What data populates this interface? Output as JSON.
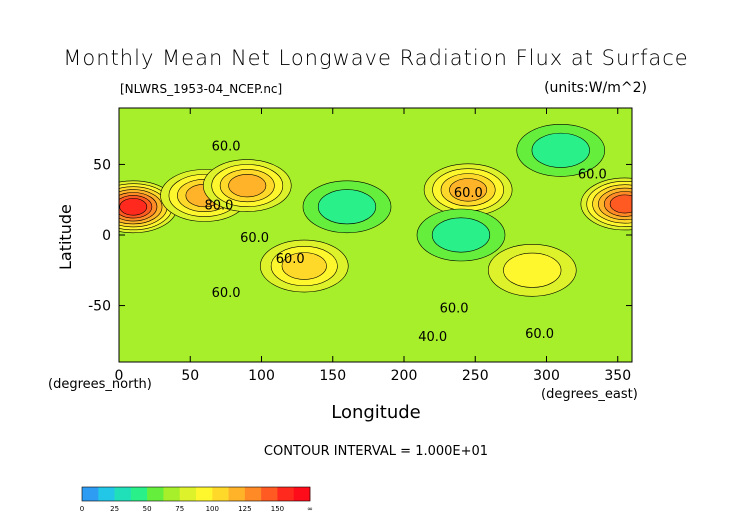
{
  "chart_data": {
    "type": "heatmap",
    "title": "Monthly Mean Net Longwave Radiation Flux at Surface",
    "source": "[NLWRS_1953-04_NCEP.nc]",
    "units": "(units:W/m^2)",
    "xlabel": "Longitude",
    "ylabel": "Latitude",
    "x_units_label": "(degrees_east)",
    "y_units_label": "(degrees_north)",
    "xlim": [
      0,
      360
    ],
    "ylim": [
      -90,
      90
    ],
    "x_ticks": [
      0,
      50,
      100,
      150,
      200,
      250,
      300,
      350
    ],
    "y_ticks": [
      50,
      0,
      -50
    ],
    "contour_interval_text": "CONTOUR INTERVAL = 1.000E+01",
    "contour_labels": [
      {
        "text": "60.0",
        "lon": 65,
        "lat": 60
      },
      {
        "text": "80.0",
        "lon": 60,
        "lat": 18
      },
      {
        "text": "60.0",
        "lon": 85,
        "lat": -5
      },
      {
        "text": "60.0",
        "lon": 110,
        "lat": -20
      },
      {
        "text": "60.0",
        "lon": 65,
        "lat": -44
      },
      {
        "text": "60.0",
        "lon": 225,
        "lat": -55
      },
      {
        "text": "40.0",
        "lon": 210,
        "lat": -75
      },
      {
        "text": "60.0",
        "lon": 285,
        "lat": -73
      },
      {
        "text": "60.0",
        "lon": 235,
        "lat": 27
      },
      {
        "text": "60.0",
        "lon": 322,
        "lat": 40
      }
    ],
    "colorbar": {
      "tick_labels": [
        "0",
        "25",
        "50",
        "75",
        "100",
        "125",
        "150",
        "∞"
      ],
      "colors": [
        "#2e9cf2",
        "#22c7e8",
        "#1fe0b9",
        "#2af08a",
        "#66ee3d",
        "#a6ef2a",
        "#ddf22a",
        "#fff72d",
        "#ffd92a",
        "#ffb329",
        "#ff8a26",
        "#ff5a22",
        "#ff2a1d",
        "#ff0c1a"
      ]
    },
    "features": [
      {
        "lon": 10,
        "lat": 20,
        "value": 150
      },
      {
        "lon": 60,
        "lat": 28,
        "value": 120
      },
      {
        "lon": 90,
        "lat": 35,
        "value": 110
      },
      {
        "lon": 130,
        "lat": -22,
        "value": 100
      },
      {
        "lon": 245,
        "lat": 32,
        "value": 110
      },
      {
        "lon": 355,
        "lat": 22,
        "value": 140
      },
      {
        "lon": 290,
        "lat": -25,
        "value": 95
      },
      {
        "lon": 160,
        "lat": 20,
        "value": 45
      },
      {
        "lon": 240,
        "lat": 0,
        "value": 45
      },
      {
        "lon": 310,
        "lat": 60,
        "value": 40
      }
    ],
    "background_value": 65
  }
}
